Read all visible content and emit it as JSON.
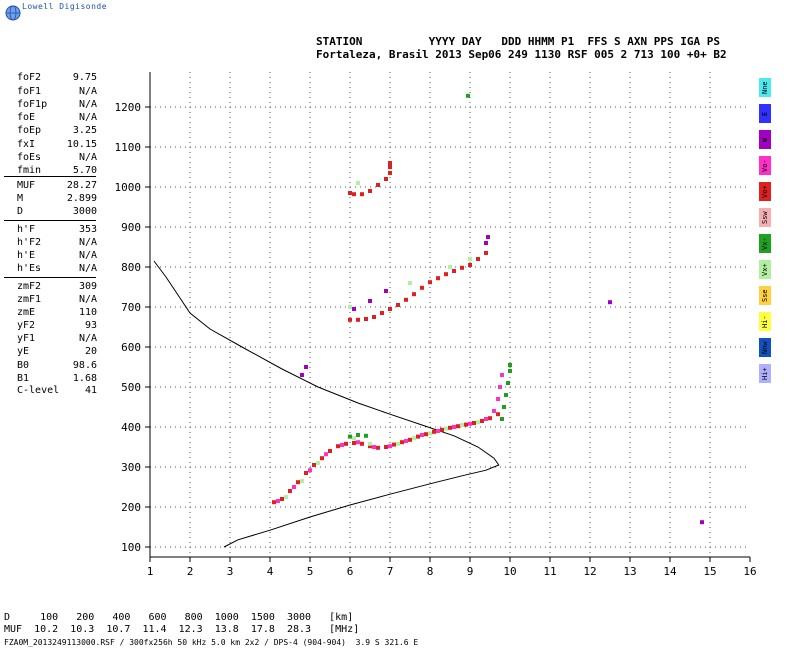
{
  "app": {
    "logo_text": "Lowell Digisonde"
  },
  "header": {
    "line1": "STATION          YYYY DAY   DDD HHMM P1  FFS S AXN PPS IGA PS",
    "line2": "Fortaleza, Brasil 2013 Sep06 249 1130 RSF 005 2 713 100 +0+ B2"
  },
  "params": [
    {
      "label": "foF2",
      "value": "9.75"
    },
    {
      "label": "foF1",
      "value": "N/A"
    },
    {
      "label": "foF1p",
      "value": "N/A"
    },
    {
      "label": "foE",
      "value": "N/A"
    },
    {
      "label": "foEp",
      "value": "3.25"
    },
    {
      "label": "fxI",
      "value": "10.15"
    },
    {
      "label": "foEs",
      "value": "N/A"
    },
    {
      "label": "fmin",
      "value": "5.70"
    },
    {
      "label": "MUF",
      "value": "28.27"
    },
    {
      "label": "M",
      "value": "2.899"
    },
    {
      "label": "D",
      "value": "3000"
    },
    {
      "label": "h'F",
      "value": "353"
    },
    {
      "label": "h'F2",
      "value": "N/A"
    },
    {
      "label": "h'E",
      "value": "N/A"
    },
    {
      "label": "h'Es",
      "value": "N/A"
    },
    {
      "label": "zmF2",
      "value": "309"
    },
    {
      "label": "zmF1",
      "value": "N/A"
    },
    {
      "label": "zmE",
      "value": "110"
    },
    {
      "label": "yF2",
      "value": "93"
    },
    {
      "label": "yF1",
      "value": "N/A"
    },
    {
      "label": "yE",
      "value": "20"
    },
    {
      "label": "B0",
      "value": "98.6"
    },
    {
      "label": "B1",
      "value": "1.68"
    },
    {
      "label": "C-level",
      "value": "41"
    }
  ],
  "legend": [
    {
      "label": "Nne",
      "color": "#4de8f0"
    },
    {
      "label": "E",
      "color": "#3030ff"
    },
    {
      "label": "W",
      "color": "#a000c0"
    },
    {
      "label": "Vo-",
      "color": "#ff30c8"
    },
    {
      "label": "Vo+",
      "color": "#e02020"
    },
    {
      "label": "Ssw",
      "color": "#f4b0b0"
    },
    {
      "label": "Vx-",
      "color": "#20a020"
    },
    {
      "label": "Vx+",
      "color": "#b0f0a0"
    },
    {
      "label": "Sse",
      "color": "#ffd040"
    },
    {
      "label": "Hi-",
      "color": "#ffff40"
    },
    {
      "label": "Nnw",
      "color": "#1050c0"
    },
    {
      "label": "Hi+",
      "color": "#b0b0ff"
    }
  ],
  "bottom": {
    "d_row": "D     100   200   400   600   800  1000  1500  3000   [km]",
    "muf_row": "MUF  10.2  10.3  10.7  11.4  12.3  13.8  17.8  28.3   [MHz]",
    "footer": "FZA0M_2013249113000.RSF / 300fx256h 50 kHz 5.0 km 2x2 / DPS-4 (904-904)  3.9 S 321.6 E"
  },
  "chart_data": {
    "type": "scatter",
    "xlim": [
      1,
      16
    ],
    "ylim": [
      80,
      1300
    ],
    "xticks": [
      1,
      2,
      3,
      4,
      5,
      6,
      7,
      8,
      9,
      10,
      11,
      12,
      13,
      14,
      15,
      16
    ],
    "yticks": [
      100,
      200,
      300,
      400,
      500,
      600,
      700,
      800,
      900,
      1000,
      1100,
      1200
    ],
    "grid": true,
    "series": [
      {
        "color": "#e02020",
        "points": [
          [
            4.1,
            212
          ],
          [
            4.3,
            220
          ],
          [
            4.5,
            240
          ],
          [
            4.7,
            262
          ],
          [
            4.9,
            285
          ],
          [
            5.1,
            305
          ],
          [
            5.3,
            322
          ],
          [
            5.5,
            340
          ],
          [
            5.7,
            352
          ],
          [
            5.9,
            358
          ],
          [
            6.1,
            360
          ],
          [
            6.3,
            358
          ],
          [
            6.5,
            352
          ],
          [
            6.7,
            348
          ],
          [
            6.9,
            350
          ],
          [
            7.1,
            356
          ],
          [
            7.3,
            362
          ],
          [
            7.5,
            368
          ],
          [
            7.7,
            376
          ],
          [
            7.9,
            382
          ],
          [
            8.1,
            388
          ],
          [
            8.3,
            393
          ],
          [
            8.5,
            398
          ],
          [
            8.7,
            402
          ],
          [
            8.9,
            406
          ],
          [
            9.1,
            410
          ],
          [
            9.3,
            415
          ],
          [
            9.5,
            422
          ],
          [
            9.7,
            432
          ]
        ]
      },
      {
        "color": "#ff30c8",
        "points": [
          [
            4.2,
            215
          ],
          [
            4.6,
            250
          ],
          [
            5.0,
            292
          ],
          [
            5.4,
            332
          ],
          [
            5.8,
            355
          ],
          [
            6.2,
            362
          ],
          [
            6.6,
            350
          ],
          [
            7.0,
            352
          ],
          [
            7.4,
            365
          ],
          [
            7.8,
            380
          ],
          [
            8.2,
            390
          ],
          [
            8.6,
            400
          ],
          [
            9.0,
            408
          ],
          [
            9.4,
            420
          ],
          [
            9.6,
            440
          ],
          [
            9.7,
            470
          ],
          [
            9.75,
            500
          ],
          [
            9.8,
            530
          ]
        ]
      },
      {
        "color": "#20a020",
        "points": [
          [
            6.0,
            376
          ],
          [
            6.2,
            380
          ],
          [
            6.4,
            378
          ],
          [
            9.8,
            420
          ],
          [
            9.85,
            450
          ],
          [
            9.9,
            480
          ],
          [
            9.95,
            510
          ],
          [
            10.0,
            540
          ],
          [
            10.0,
            555
          ]
        ]
      },
      {
        "color": "#b0f0a0",
        "points": [
          [
            4.4,
            225
          ],
          [
            4.8,
            265
          ],
          [
            5.2,
            310
          ],
          [
            6.1,
            372
          ],
          [
            6.5,
            358
          ],
          [
            7.2,
            358
          ],
          [
            7.6,
            372
          ],
          [
            8.0,
            384
          ],
          [
            8.4,
            396
          ],
          [
            8.8,
            405
          ],
          [
            9.2,
            412
          ],
          [
            6.0,
            700
          ],
          [
            7.5,
            760
          ],
          [
            8.5,
            800
          ],
          [
            9.0,
            820
          ],
          [
            6.2,
            1010
          ]
        ]
      },
      {
        "color": "#e02020",
        "points": [
          [
            6.0,
            668
          ],
          [
            6.2,
            668
          ],
          [
            6.4,
            670
          ],
          [
            6.6,
            675
          ],
          [
            6.8,
            685
          ],
          [
            7.0,
            695
          ],
          [
            7.2,
            705
          ],
          [
            7.4,
            718
          ],
          [
            7.6,
            732
          ],
          [
            7.8,
            748
          ],
          [
            8.0,
            762
          ],
          [
            8.2,
            772
          ],
          [
            8.4,
            782
          ],
          [
            8.6,
            790
          ],
          [
            8.8,
            798
          ],
          [
            9.0,
            805
          ],
          [
            9.2,
            820
          ],
          [
            9.4,
            835
          ]
        ]
      },
      {
        "color": "#a000c0",
        "points": [
          [
            6.1,
            695
          ],
          [
            6.5,
            715
          ],
          [
            6.9,
            740
          ],
          [
            9.4,
            860
          ],
          [
            9.45,
            875
          ],
          [
            4.9,
            550
          ],
          [
            4.8,
            530
          ]
        ]
      },
      {
        "color": "#e02020",
        "points": [
          [
            6.0,
            985
          ],
          [
            6.1,
            982
          ],
          [
            6.3,
            982
          ],
          [
            6.5,
            990
          ],
          [
            6.7,
            1005
          ],
          [
            6.9,
            1020
          ],
          [
            7.0,
            1035
          ],
          [
            7.0,
            1050
          ],
          [
            7.0,
            1060
          ]
        ]
      },
      {
        "color": "#a000c0",
        "points": [
          [
            12.5,
            712
          ],
          [
            14.8,
            162
          ]
        ]
      },
      {
        "color": "#20a020",
        "points": [
          [
            8.95,
            1228
          ]
        ]
      }
    ],
    "profile": [
      [
        2.85,
        100
      ],
      [
        3.2,
        118
      ],
      [
        4.0,
        142
      ],
      [
        5.0,
        175
      ],
      [
        6.0,
        205
      ],
      [
        7.0,
        232
      ],
      [
        8.0,
        258
      ],
      [
        8.8,
        278
      ],
      [
        9.4,
        292
      ],
      [
        9.72,
        305
      ],
      [
        9.6,
        322
      ],
      [
        9.2,
        350
      ],
      [
        8.6,
        378
      ],
      [
        7.8,
        405
      ],
      [
        7.0,
        432
      ],
      [
        6.2,
        460
      ],
      [
        5.2,
        500
      ],
      [
        4.3,
        545
      ],
      [
        3.3,
        600
      ],
      [
        2.5,
        645
      ],
      [
        2.0,
        685
      ],
      [
        1.7,
        730
      ],
      [
        1.4,
        775
      ],
      [
        1.1,
        815
      ]
    ]
  }
}
